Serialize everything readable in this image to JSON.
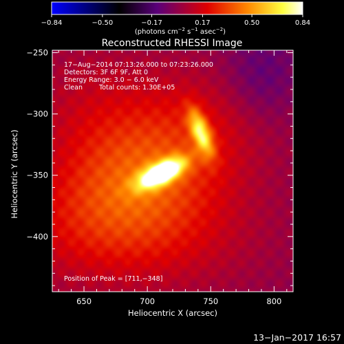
{
  "chart_data": {
    "type": "heatmap",
    "title": "Reconstructed RHESSI Image",
    "xlabel": "Heliocentric X (arcsec)",
    "ylabel": "Heliocentric Y (arcsec)",
    "xlim": [
      625,
      815
    ],
    "ylim": [
      -445,
      -248
    ],
    "x_ticks": [
      650,
      700,
      750,
      800
    ],
    "x_tick_labels": [
      "650",
      "700",
      "750",
      "800"
    ],
    "y_ticks": [
      -250,
      -300,
      -350,
      -400
    ],
    "y_tick_labels": [
      "−250",
      "−300",
      "−350",
      "−400"
    ],
    "colorbar": {
      "ticks": [
        -0.84,
        -0.5,
        -0.17,
        0.17,
        0.5,
        0.84
      ],
      "tick_labels": [
        "−0.84",
        "−0.50",
        "−0.17",
        "0.17",
        "0.50",
        "0.84"
      ],
      "range": [
        -0.84,
        0.84
      ],
      "colors": [
        "#0000ff",
        "#000000",
        "#5a007a",
        "#e00000",
        "#ff8800",
        "#ffff40",
        "#ffffff"
      ]
    },
    "annotations": {
      "line1": "17−Aug−2014 07:13:26.000 to 07:23:26.000",
      "line2": "Detectors: 3F 6F 9F, Att 0",
      "line3": "Energy Range: 3.0 − 6.0 keV",
      "line4_label": "Clean",
      "line4_counts": "Total counts: 1.30E+05",
      "peak": "Position of Peak = [711,−348]"
    },
    "peak_position": [
      711,
      -348
    ],
    "sources": [
      {
        "x": 711,
        "y": -348,
        "sx": 14,
        "sy": 6,
        "angle": 28,
        "amp": 0.84
      },
      {
        "x": 742,
        "y": -315,
        "sx": 5,
        "sy": 14,
        "angle": 20,
        "amp": 0.55
      },
      {
        "x": 700,
        "y": -345,
        "sx": 65,
        "sy": 35,
        "angle": 35,
        "amp": 0.3
      },
      {
        "x": 705,
        "y": -395,
        "sx": 55,
        "sy": 35,
        "angle": 0,
        "amp": 0.18
      },
      {
        "x": 660,
        "y": -300,
        "sx": 40,
        "sy": 40,
        "angle": 0,
        "amp": 0.12
      }
    ],
    "negative_region": {
      "x": 790,
      "y": -268,
      "sx": 22,
      "sy": 28,
      "amp": -0.15
    }
  },
  "footer": {
    "timestamp": "13−Jan−2017 16:57"
  }
}
